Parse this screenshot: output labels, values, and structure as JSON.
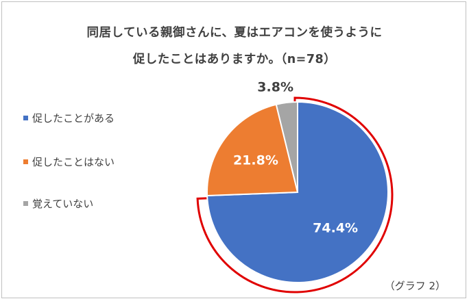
{
  "chart_data": {
    "type": "pie",
    "title": "同居している親御さんに、夏はエアコンを使うように促したことはありますか。（n=78）",
    "title_lines": [
      "同居している親御さんに、夏はエアコンを使うように",
      "促したことはありますか。（n=78）"
    ],
    "categories": [
      "促したことがある",
      "促したことはない",
      "覚えていない"
    ],
    "values": [
      74.4,
      21.8,
      3.8
    ],
    "data_labels": [
      "74.4%",
      "21.8%",
      "3.8%"
    ],
    "colors": [
      "#4472c4",
      "#ed7d31",
      "#a5a5a5"
    ],
    "highlight_color": "#e00000",
    "highlighted_slice": 0,
    "legend_position": "left",
    "start_angle": 0,
    "direction": "clockwise",
    "caption": "（グラフ 2）"
  }
}
